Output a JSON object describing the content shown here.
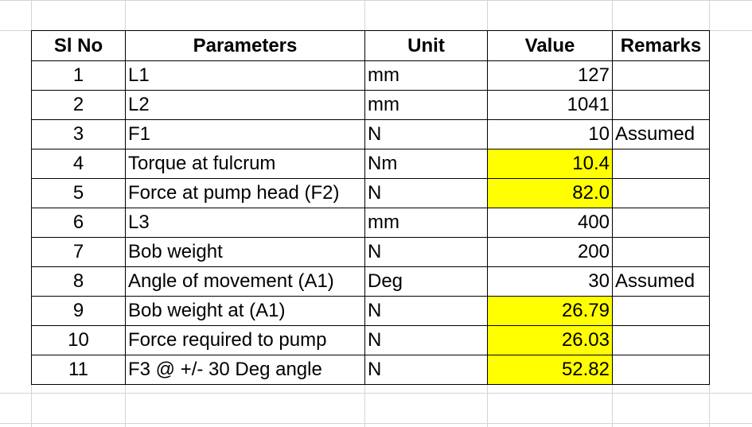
{
  "sheet": {
    "headers": [
      "Sl No",
      "Parameters",
      "Unit",
      "Value",
      "Remarks"
    ],
    "highlight_color": "#ffff00",
    "rows": [
      {
        "sl": "1",
        "param": "L1",
        "unit": "mm",
        "value": "127",
        "remarks": "",
        "highlight": false
      },
      {
        "sl": "2",
        "param": "L2",
        "unit": "mm",
        "value": "1041",
        "remarks": "",
        "highlight": false
      },
      {
        "sl": "3",
        "param": "F1",
        "unit": "N",
        "value": "10",
        "remarks": "Assumed",
        "highlight": false
      },
      {
        "sl": "4",
        "param": "Torque at fulcrum",
        "unit": "Nm",
        "value": "10.4",
        "remarks": "",
        "highlight": true
      },
      {
        "sl": "5",
        "param": "Force at pump head (F2)",
        "unit": "N",
        "value": "82.0",
        "remarks": "",
        "highlight": true
      },
      {
        "sl": "6",
        "param": "L3",
        "unit": "mm",
        "value": "400",
        "remarks": "",
        "highlight": false
      },
      {
        "sl": "7",
        "param": "Bob weight",
        "unit": "N",
        "value": "200",
        "remarks": "",
        "highlight": false
      },
      {
        "sl": "8",
        "param": "Angle of movement (A1)",
        "unit": "Deg",
        "value": "30",
        "remarks": "Assumed",
        "highlight": false
      },
      {
        "sl": "9",
        "param": "Bob weight at (A1)",
        "unit": "N",
        "value": "26.79",
        "remarks": "",
        "highlight": true
      },
      {
        "sl": "10",
        "param": "Force required to pump",
        "unit": "N",
        "value": "26.03",
        "remarks": "",
        "highlight": true
      },
      {
        "sl": "11",
        "param": "F3 @ +/- 30 Deg angle",
        "unit": "N",
        "value": "52.82",
        "remarks": "",
        "highlight": true
      }
    ]
  }
}
